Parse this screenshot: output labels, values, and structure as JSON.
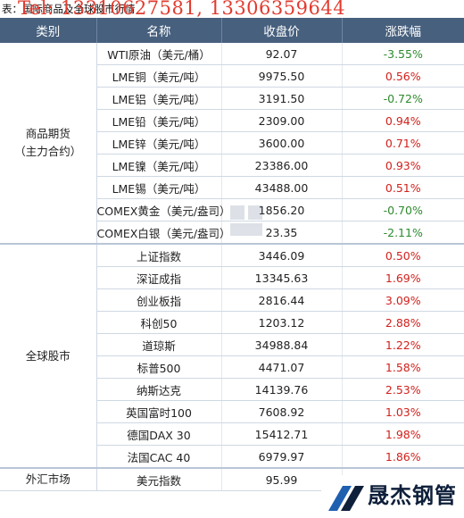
{
  "caption": "表：国际商品及全球股市行情",
  "overlay_text": "Tel: 13310627581, 13306359644",
  "headers": [
    "类别",
    "名称",
    "收盘价",
    "涨跌幅"
  ],
  "groups": [
    {
      "category": "商品期货\n（主力合约）",
      "rows": [
        {
          "name": "WTI原油（美元/桶）",
          "price": "92.07",
          "change": "-3.55%",
          "dir": "down"
        },
        {
          "name": "LME铜（美元/吨）",
          "price": "9975.50",
          "change": "0.56%",
          "dir": "up"
        },
        {
          "name": "LME铝（美元/吨）",
          "price": "3191.50",
          "change": "-0.72%",
          "dir": "down"
        },
        {
          "name": "LME铅（美元/吨）",
          "price": "2309.00",
          "change": "0.94%",
          "dir": "up"
        },
        {
          "name": "LME锌（美元/吨）",
          "price": "3600.00",
          "change": "0.71%",
          "dir": "up"
        },
        {
          "name": "LME镍（美元/吨）",
          "price": "23386.00",
          "change": "0.93%",
          "dir": "up"
        },
        {
          "name": "LME锡（美元/吨）",
          "price": "43488.00",
          "change": "0.51%",
          "dir": "up"
        },
        {
          "name": "COMEX黄金（美元/盎司）",
          "price": "1856.20",
          "change": "-0.70%",
          "dir": "down"
        },
        {
          "name": "COMEX白银（美元/盎司）",
          "price": "23.35",
          "change": "-2.11%",
          "dir": "down"
        }
      ]
    },
    {
      "category": "全球股市",
      "rows": [
        {
          "name": "上证指数",
          "price": "3446.09",
          "change": "0.50%",
          "dir": "up"
        },
        {
          "name": "深证成指",
          "price": "13345.63",
          "change": "1.69%",
          "dir": "up"
        },
        {
          "name": "创业板指",
          "price": "2816.44",
          "change": "3.09%",
          "dir": "up"
        },
        {
          "name": "科创50",
          "price": "1203.12",
          "change": "2.88%",
          "dir": "up"
        },
        {
          "name": "道琼斯",
          "price": "34988.84",
          "change": "1.22%",
          "dir": "up"
        },
        {
          "name": "标普500",
          "price": "4471.07",
          "change": "1.58%",
          "dir": "up"
        },
        {
          "name": "纳斯达克",
          "price": "14139.76",
          "change": "2.53%",
          "dir": "up"
        },
        {
          "name": "英国富时100",
          "price": "7608.92",
          "change": "1.03%",
          "dir": "up"
        },
        {
          "name": "德国DAX 30",
          "price": "15412.71",
          "change": "1.98%",
          "dir": "up"
        },
        {
          "name": "法国CAC 40",
          "price": "6979.97",
          "change": "1.86%",
          "dir": "up"
        }
      ]
    },
    {
      "category": "外汇市场",
      "rows": [
        {
          "name": "美元指数",
          "price": "95.99",
          "change": "",
          "dir": "none"
        }
      ]
    }
  ],
  "logo": {
    "text": "晟杰钢管",
    "color": "#0e1f3a",
    "accent": "#1f5fb0"
  },
  "colors": {
    "header_bg": "#47607e",
    "up": "#d0211c",
    "down": "#2d8a2d",
    "overlay": "#e23b2e"
  }
}
